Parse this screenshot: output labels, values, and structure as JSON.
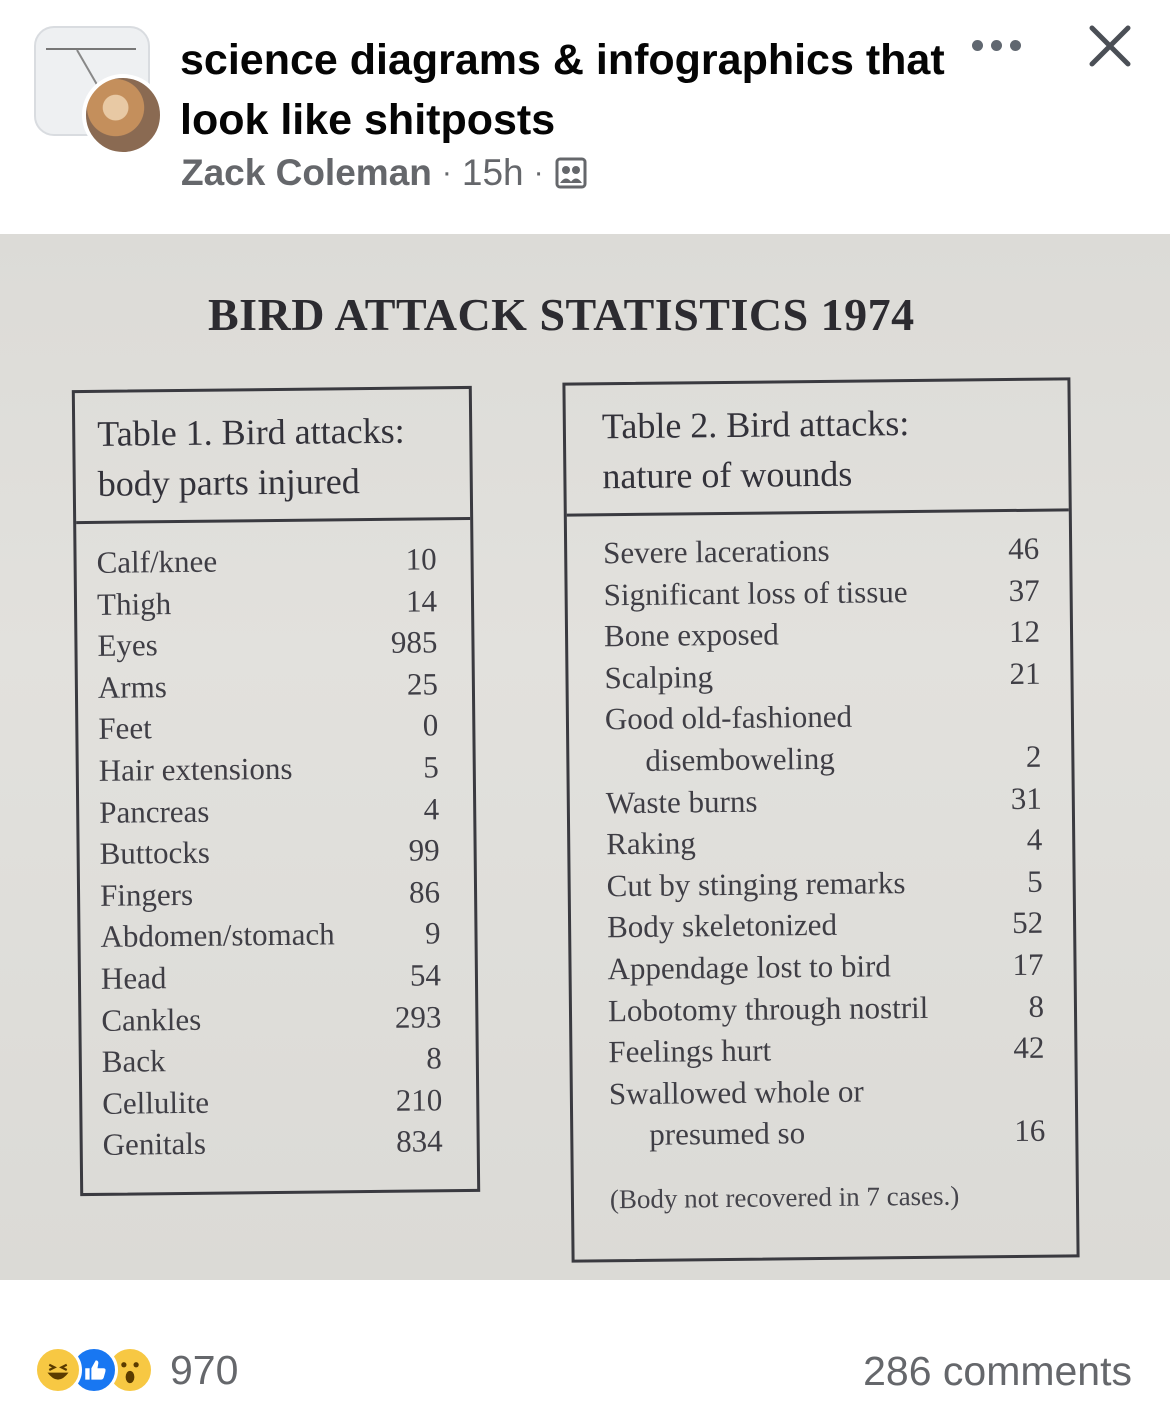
{
  "post": {
    "group_title": "science diagrams & infographics that look like shitposts",
    "author": "Zack Coleman",
    "separator": "·",
    "time": "15h",
    "more_icon": "more-horizontal-icon",
    "close_icon": "close-icon",
    "privacy_icon": "group-members-icon"
  },
  "image": {
    "title": "BIRD ATTACK STATISTICS 1974",
    "table1": {
      "heading_line1": "Table 1. Bird attacks:",
      "heading_line2": "body parts injured",
      "rows": [
        {
          "label": "Calf/knee",
          "value": "10"
        },
        {
          "label": "Thigh",
          "value": "14"
        },
        {
          "label": "Eyes",
          "value": "985"
        },
        {
          "label": "Arms",
          "value": "25"
        },
        {
          "label": "Feet",
          "value": "0"
        },
        {
          "label": "Hair extensions",
          "value": "5"
        },
        {
          "label": "Pancreas",
          "value": "4"
        },
        {
          "label": "Buttocks",
          "value": "99"
        },
        {
          "label": "Fingers",
          "value": "86"
        },
        {
          "label": "Abdomen/stomach",
          "value": "9"
        },
        {
          "label": "Head",
          "value": "54"
        },
        {
          "label": "Cankles",
          "value": "293"
        },
        {
          "label": "Back",
          "value": "8"
        },
        {
          "label": "Cellulite",
          "value": "210"
        },
        {
          "label": "Genitals",
          "value": "834"
        }
      ]
    },
    "table2": {
      "heading_line1": "Table 2. Bird attacks:",
      "heading_line2": "nature of wounds",
      "rows": [
        {
          "label": "Severe lacerations",
          "value": "46"
        },
        {
          "label": "Significant loss of tissue",
          "value": "37"
        },
        {
          "label": "Bone exposed",
          "value": "12"
        },
        {
          "label": "Scalping",
          "value": "21"
        },
        {
          "label": "Good old-fashioned",
          "value": ""
        },
        {
          "label": "disemboweling",
          "value": "2"
        },
        {
          "label": "Waste burns",
          "value": "31"
        },
        {
          "label": "Raking",
          "value": "4"
        },
        {
          "label": "Cut by stinging remarks",
          "value": "5"
        },
        {
          "label": "Body skeletonized",
          "value": "52"
        },
        {
          "label": "Appendage lost to bird",
          "value": "17"
        },
        {
          "label": "Lobotomy through nostril",
          "value": "8"
        },
        {
          "label": "Feelings hurt",
          "value": "42"
        },
        {
          "label": "Swallowed whole or",
          "value": ""
        },
        {
          "label": "presumed so",
          "value": "16"
        }
      ],
      "footnote": "(Body not recovered in 7 cases.)"
    }
  },
  "footer": {
    "reaction_icons": [
      "haha-reaction-icon",
      "like-reaction-icon",
      "wow-reaction-icon"
    ],
    "reaction_count": "970",
    "comments": "286 comments"
  }
}
